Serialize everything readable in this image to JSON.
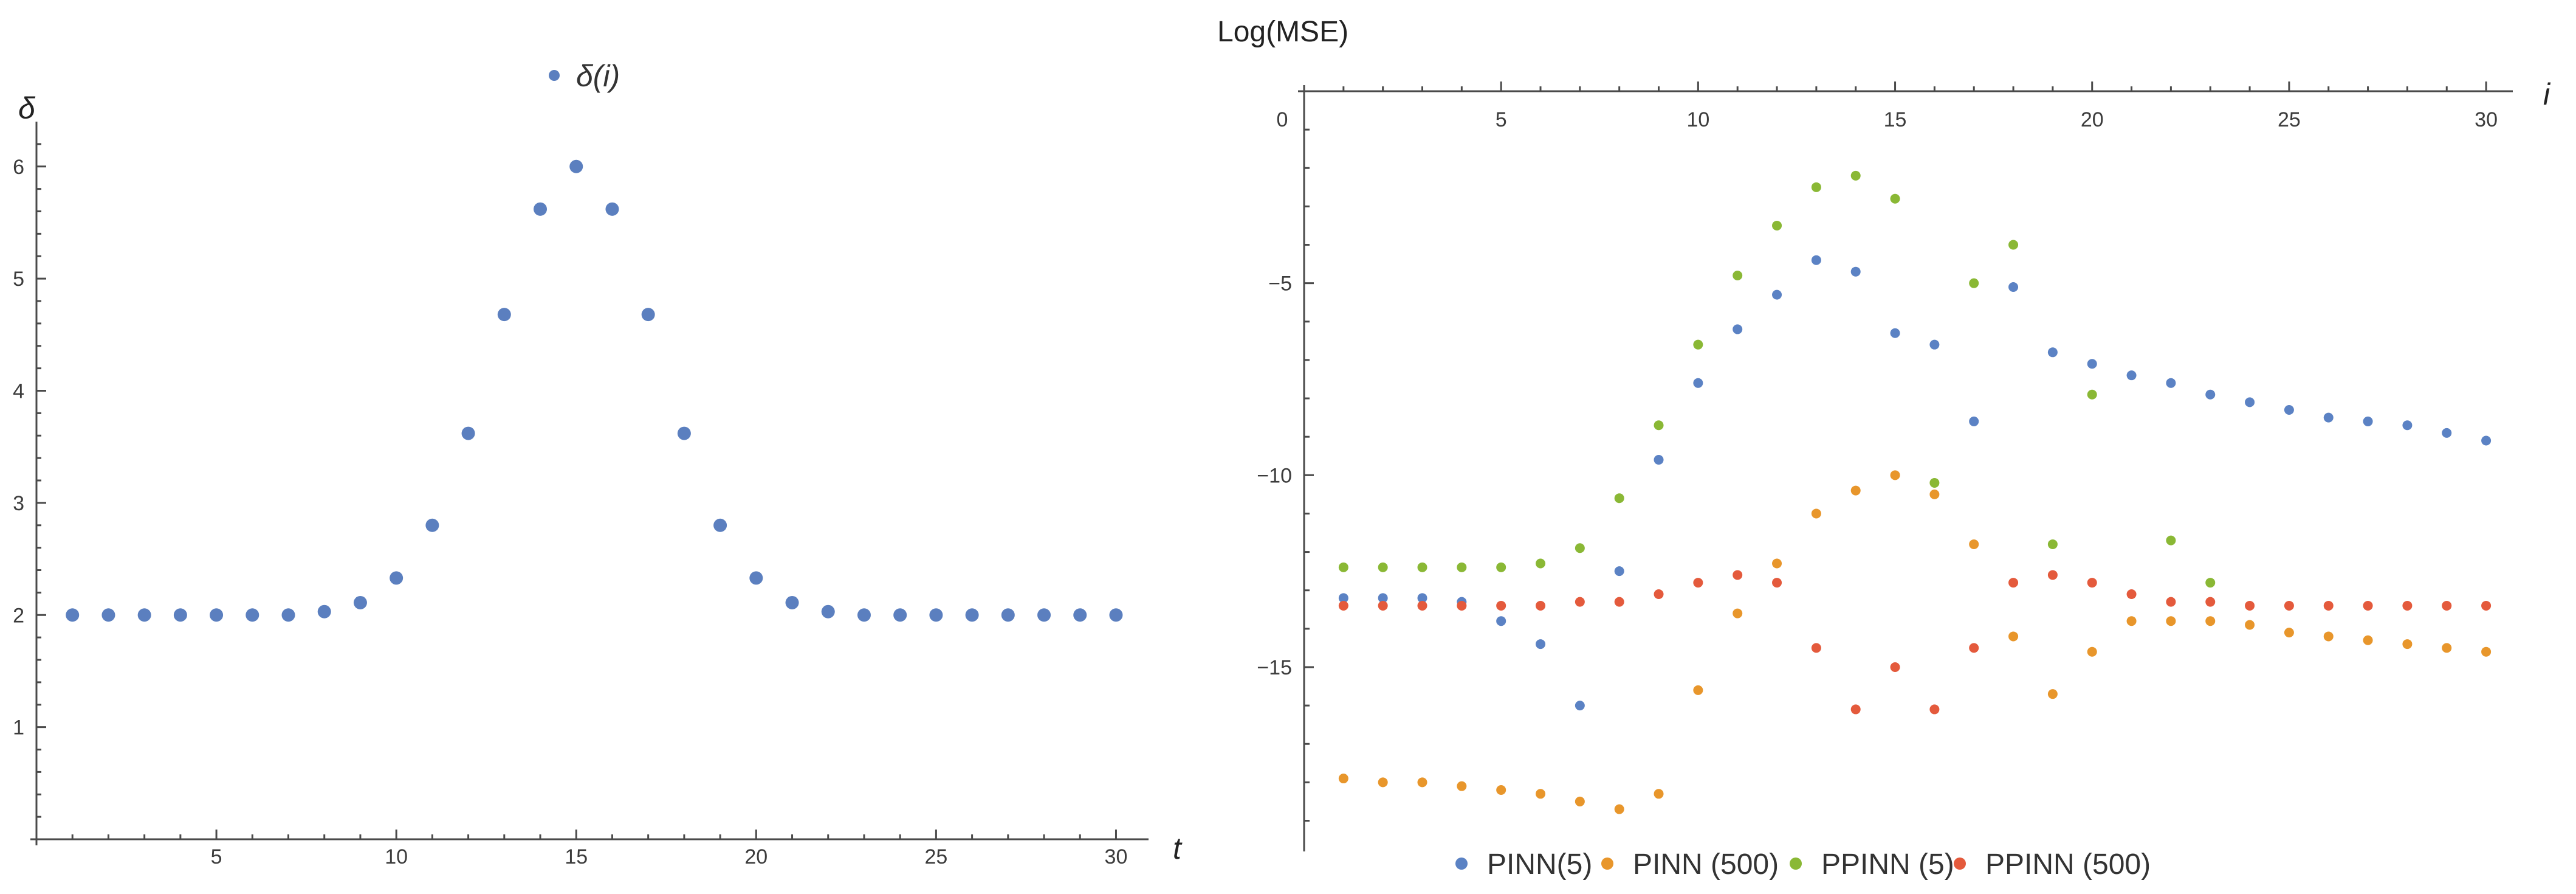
{
  "chart_data": [
    {
      "type": "scatter",
      "title": "",
      "xlabel": "t",
      "ylabel": "δ",
      "xlim": [
        0,
        30.6
      ],
      "ylim": [
        0,
        6.4
      ],
      "x_ticks": [
        5,
        10,
        15,
        20,
        25,
        30
      ],
      "y_ticks": [
        1,
        2,
        3,
        4,
        5,
        6
      ],
      "legend": {
        "position": "top-center"
      },
      "series": [
        {
          "name": "δ(i)",
          "color": "#5b7fbf",
          "x": [
            1,
            2,
            3,
            4,
            5,
            6,
            7,
            8,
            9,
            10,
            11,
            12,
            13,
            14,
            15,
            16,
            17,
            18,
            19,
            20,
            21,
            22,
            23,
            24,
            25,
            26,
            27,
            28,
            29,
            30
          ],
          "y": [
            2.0,
            2.0,
            2.0,
            2.0,
            2.0,
            2.0,
            2.0,
            2.03,
            2.11,
            2.33,
            2.8,
            3.62,
            4.68,
            5.62,
            6.0,
            5.62,
            4.68,
            3.62,
            2.8,
            2.33,
            2.11,
            2.03,
            2.0,
            2.0,
            2.0,
            2.0,
            2.0,
            2.0,
            2.0,
            2.0
          ]
        }
      ]
    },
    {
      "type": "scatter",
      "title": "",
      "xlabel": "i",
      "ylabel": "Log(MSE)",
      "x_axis_position": "top",
      "xlim": [
        0,
        30.6
      ],
      "ylim": [
        -19.8,
        0
      ],
      "x_ticks": [
        0,
        5,
        10,
        15,
        20,
        25,
        30
      ],
      "y_ticks": [
        -5,
        -10,
        -15
      ],
      "legend": {
        "position": "bottom-center"
      },
      "series": [
        {
          "name": "PINN(5)",
          "color": "#5b82c4",
          "x": [
            1,
            2,
            3,
            4,
            5,
            6,
            7,
            8,
            9,
            10,
            11,
            12,
            13,
            14,
            15,
            16,
            17,
            18,
            19,
            20,
            21,
            22,
            23,
            24,
            25,
            26,
            27,
            28,
            29,
            30
          ],
          "y": [
            -13.2,
            -13.2,
            -13.2,
            -13.3,
            -13.8,
            -14.4,
            -16.0,
            -12.5,
            -9.6,
            -7.6,
            -6.2,
            -5.3,
            -4.4,
            -4.7,
            -6.3,
            -6.6,
            -8.6,
            -5.1,
            -6.8,
            -7.1,
            -7.4,
            -7.6,
            -7.9,
            -8.1,
            -8.3,
            -8.5,
            -8.6,
            -8.7,
            -8.9,
            -9.1
          ]
        },
        {
          "name": "PINN (500)",
          "color": "#e8962b",
          "x": [
            1,
            2,
            3,
            4,
            5,
            6,
            7,
            8,
            9,
            10,
            11,
            12,
            13,
            14,
            15,
            16,
            17,
            18,
            19,
            20,
            21,
            22,
            23,
            24,
            25,
            26,
            27,
            28,
            29,
            30
          ],
          "y": [
            -17.9,
            -18.0,
            -18.0,
            -18.1,
            -18.2,
            -18.3,
            -18.5,
            -18.7,
            -18.3,
            -15.6,
            -13.6,
            -12.3,
            -11.0,
            -10.4,
            -10.0,
            -10.5,
            -11.8,
            -14.2,
            -15.7,
            -14.6,
            -13.8,
            -13.8,
            -13.8,
            -13.9,
            -14.1,
            -14.2,
            -14.3,
            -14.4,
            -14.5,
            -14.6
          ]
        },
        {
          "name": "PPINN (5)",
          "color": "#8ab835",
          "x": [
            1,
            2,
            3,
            4,
            5,
            6,
            7,
            8,
            9,
            10,
            11,
            12,
            13,
            14,
            15,
            16,
            17,
            18,
            19,
            20,
            22,
            23
          ],
          "y": [
            -12.4,
            -12.4,
            -12.4,
            -12.4,
            -12.4,
            -12.3,
            -11.9,
            -10.6,
            -8.7,
            -6.6,
            -4.8,
            -3.5,
            -2.5,
            -2.2,
            -2.8,
            -10.2,
            -5.0,
            -4.0,
            -11.8,
            -7.9,
            -11.7,
            -12.8
          ]
        },
        {
          "name": "PPINN (500)",
          "color": "#e45a3c",
          "x": [
            1,
            2,
            3,
            4,
            5,
            6,
            7,
            8,
            9,
            10,
            11,
            12,
            13,
            14,
            15,
            16,
            17,
            18,
            19,
            20,
            21,
            22,
            23,
            24,
            25,
            26,
            27,
            28,
            29,
            30
          ],
          "y": [
            -13.4,
            -13.4,
            -13.4,
            -13.4,
            -13.4,
            -13.4,
            -13.3,
            -13.3,
            -13.1,
            -12.8,
            -12.6,
            -12.8,
            -14.5,
            -16.1,
            -15.0,
            -16.1,
            -14.5,
            -12.8,
            -12.6,
            -12.8,
            -13.1,
            -13.3,
            -13.3,
            -13.4,
            -13.4,
            -13.4,
            -13.4,
            -13.4,
            -13.4,
            -13.4
          ]
        }
      ]
    }
  ]
}
